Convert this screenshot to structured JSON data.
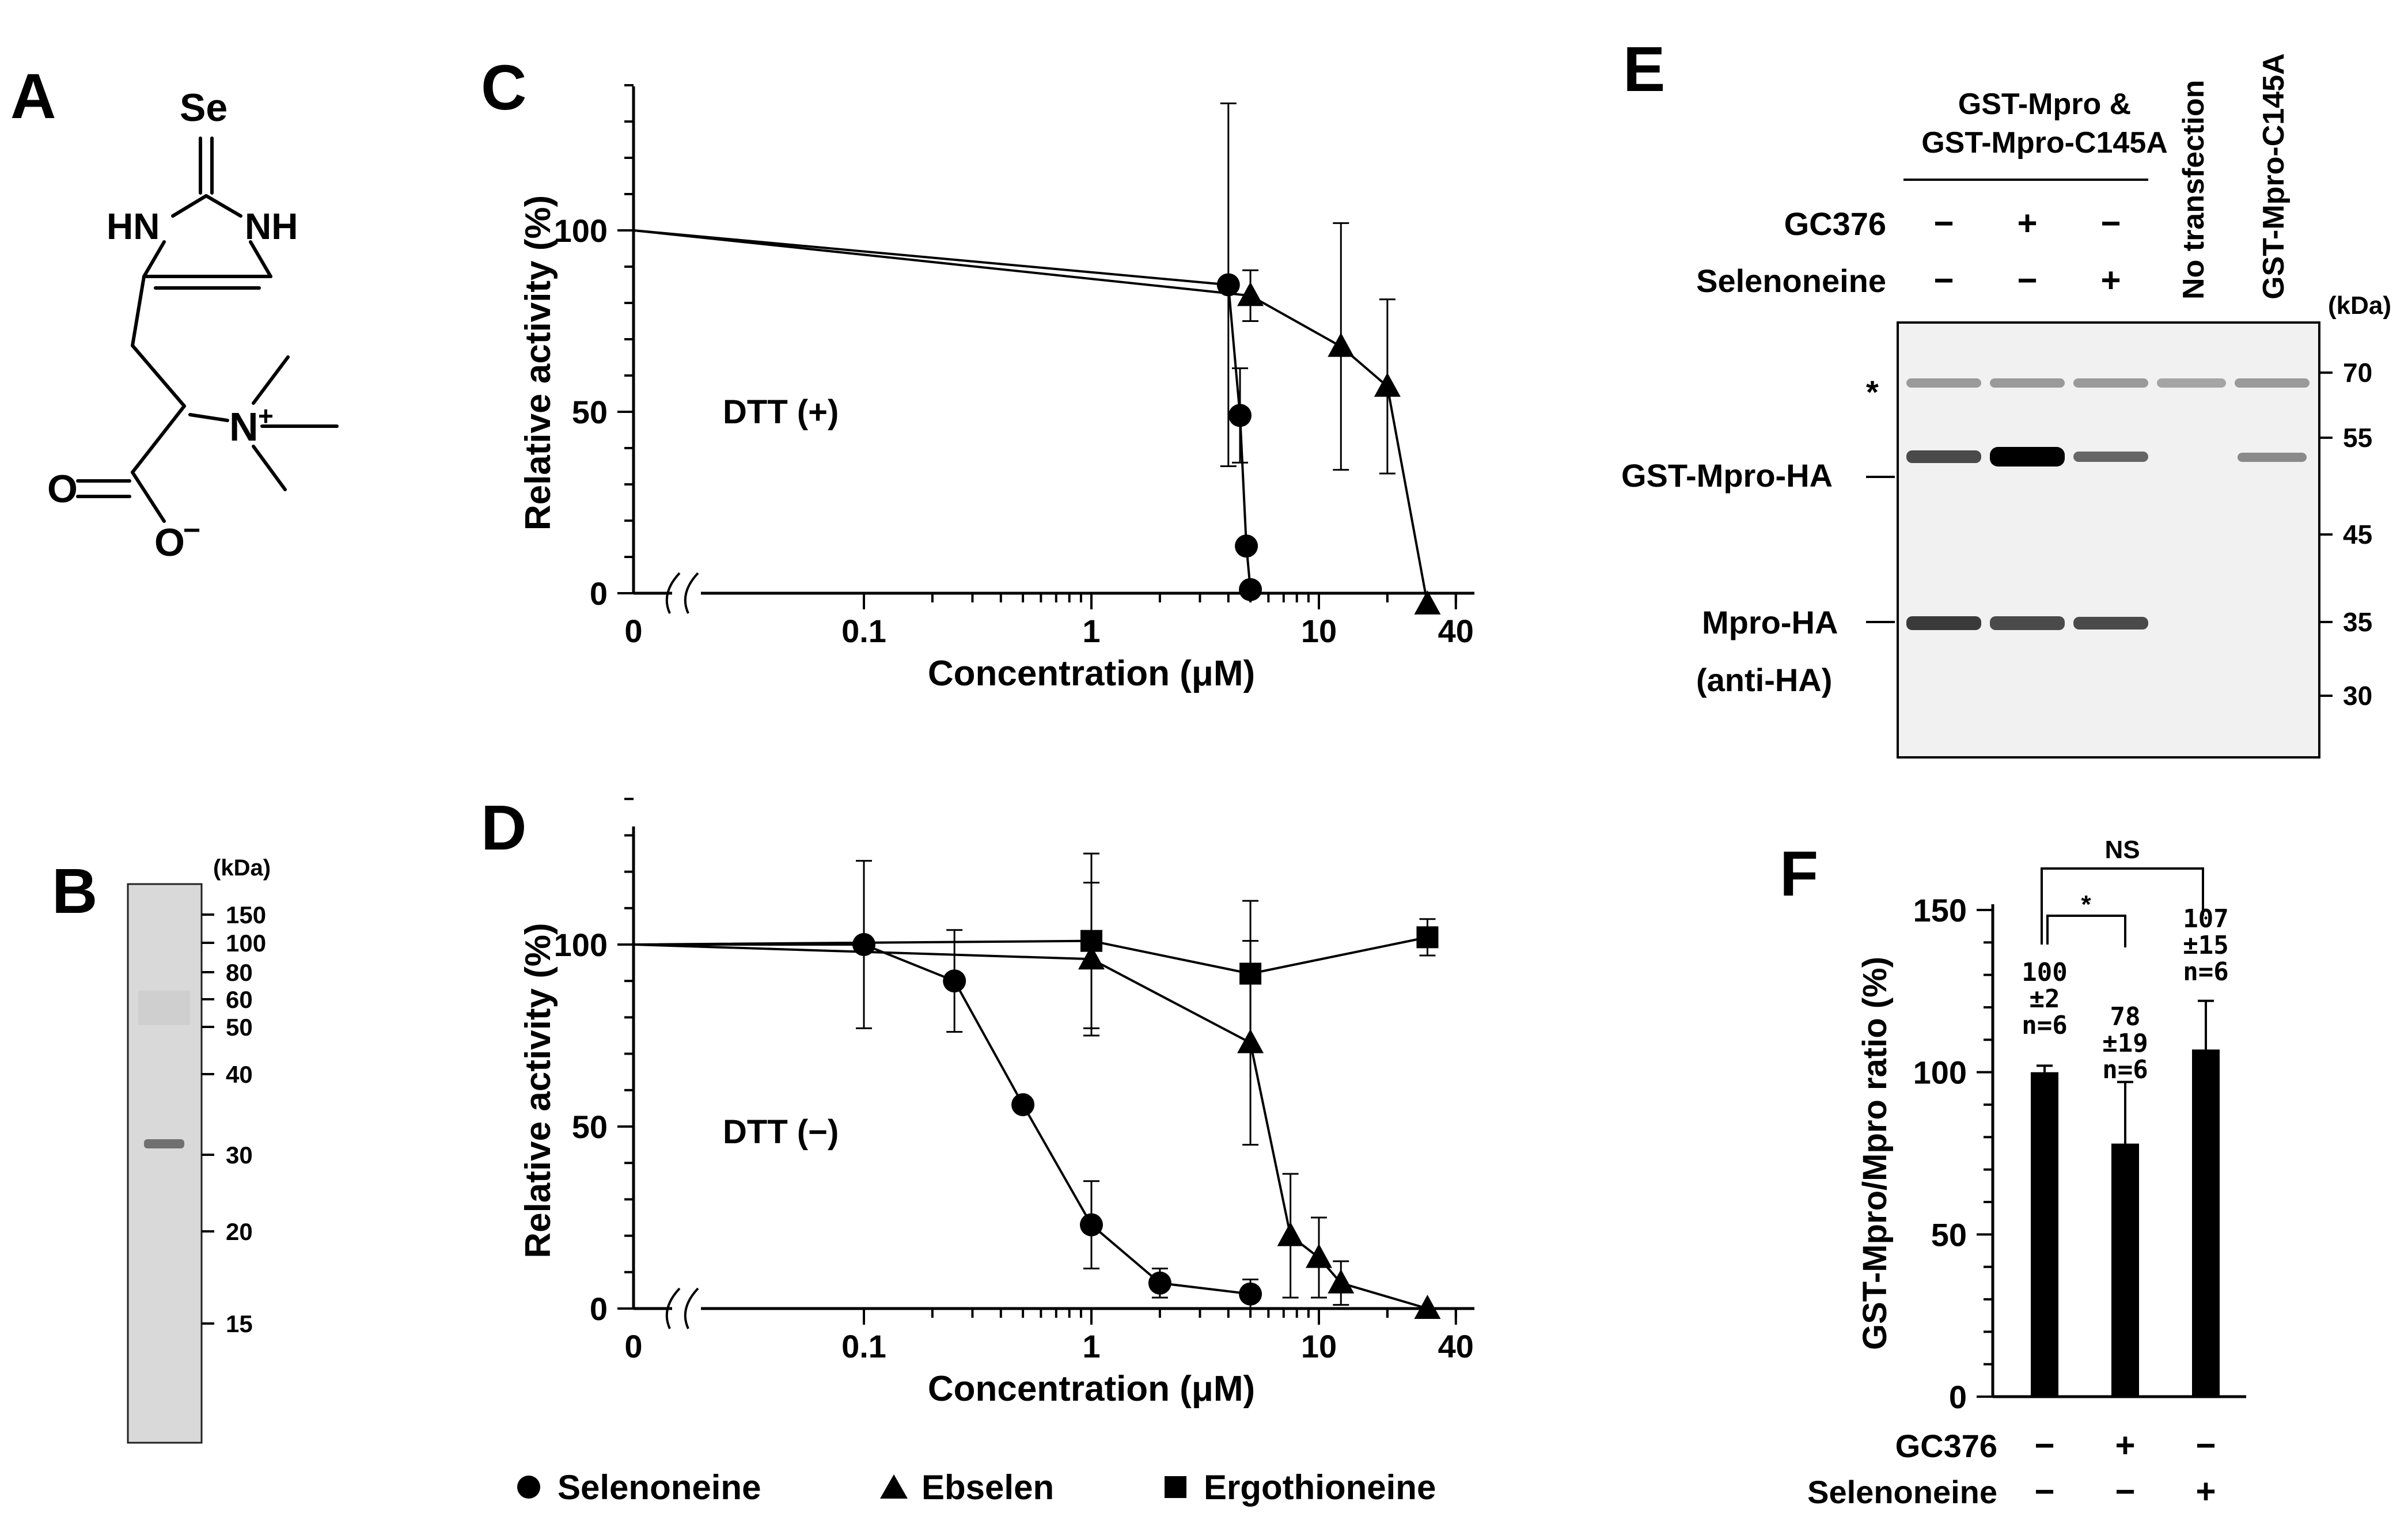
{
  "figure": {
    "panels": {
      "A": {
        "letter": "A",
        "atoms": {
          "Se": "Se",
          "HN": "HN",
          "NH": "NH",
          "N": "N",
          "plus": "+",
          "O1": "O",
          "O2": "O",
          "minus": "−"
        }
      },
      "B": {
        "letter": "B",
        "unit": "(kDa)",
        "markers": [
          "150",
          "100",
          "80",
          "60",
          "50",
          "40",
          "30",
          "20",
          "15"
        ]
      },
      "C": {
        "letter": "C",
        "condition": "DTT (+)"
      },
      "D": {
        "letter": "D",
        "condition": "DTT (−)"
      },
      "E": {
        "letter": "E",
        "group_header_line1": "GST-Mpro &",
        "group_header_line2": "GST-Mpro-C145A",
        "row_gc376": "GC376",
        "row_selenoneine": "Selenoneine",
        "gc376_signs": [
          "−",
          "+",
          "−"
        ],
        "selenoneine_signs": [
          "−",
          "−",
          "+"
        ],
        "lane_no_transfection": "No transfection",
        "lane_c145a": "GST-Mpro-C145A",
        "unit": "(kDa)",
        "markers": [
          "70",
          "55",
          "45",
          "35",
          "30"
        ],
        "asterisk": "*",
        "band_gst_mpro_ha": "GST-Mpro-HA",
        "band_mpro_ha": "Mpro-HA",
        "antibody": "(anti-HA)"
      },
      "F": {
        "letter": "F",
        "sig_ns": "NS",
        "sig_star": "*",
        "row_gc376": "GC376",
        "row_selenoneine": "Selenoneine",
        "gc376_signs": [
          "−",
          "+",
          "−"
        ],
        "selenoneine_signs": [
          "−",
          "−",
          "+"
        ],
        "bar_labels": [
          {
            "mean": "100",
            "sd": "±2",
            "n": "n=6"
          },
          {
            "mean": "78",
            "sd": "±19",
            "n": "n=6"
          },
          {
            "mean": "107",
            "sd": "±15",
            "n": "n=6"
          }
        ]
      }
    },
    "legend": {
      "selenoneine": "Selenoneine",
      "ebselen": "Ebselen",
      "ergothioneine": "Ergothioneine"
    }
  },
  "chart_data": [
    {
      "panel": "C",
      "type": "line",
      "title": "DTT (+)",
      "xlabel": "Concentration (μM)",
      "ylabel": "Relative activity (%)",
      "xscale": "log with axis break, 0 at origin",
      "xticks": [
        "0",
        "0.1",
        "1",
        "10",
        "40"
      ],
      "yticks": [
        "0",
        "50",
        "100"
      ],
      "ylim": [
        0,
        140
      ],
      "series": [
        {
          "name": "Selenoneine",
          "marker": "circle",
          "x": [
            0,
            4,
            4.5,
            4.8,
            5
          ],
          "y": [
            100,
            85,
            49,
            13,
            1
          ],
          "err": [
            0,
            50,
            13,
            0,
            0
          ]
        },
        {
          "name": "Ebselen",
          "marker": "triangle",
          "x": [
            0,
            5,
            12.5,
            20,
            30
          ],
          "y": [
            100,
            82,
            68,
            57,
            -3
          ],
          "err": [
            0,
            7,
            34,
            24,
            0
          ]
        }
      ]
    },
    {
      "panel": "D",
      "type": "line",
      "title": "DTT (−)",
      "xlabel": "Concentration (μM)",
      "ylabel": "Relative activity (%)",
      "xscale": "log with axis break, 0 at origin",
      "xticks": [
        "0",
        "0.1",
        "1",
        "10",
        "40"
      ],
      "yticks": [
        "0",
        "50",
        "100"
      ],
      "ylim": [
        0,
        140
      ],
      "series": [
        {
          "name": "Selenoneine",
          "marker": "circle",
          "x": [
            0,
            0.1,
            0.25,
            0.5,
            1,
            2,
            5
          ],
          "y": [
            100,
            100,
            90,
            56,
            23,
            7,
            4
          ],
          "err": [
            0,
            23,
            14,
            0,
            12,
            4,
            4
          ]
        },
        {
          "name": "Ebselen",
          "marker": "triangle",
          "x": [
            0,
            1,
            5,
            7.5,
            10,
            12.5,
            30
          ],
          "y": [
            100,
            96,
            73,
            20,
            14,
            7,
            0
          ],
          "err": [
            0,
            21,
            28,
            17,
            11,
            6,
            0
          ]
        },
        {
          "name": "Ergothioneine",
          "marker": "square",
          "x": [
            0,
            1,
            5,
            30
          ],
          "y": [
            100,
            101,
            92,
            102
          ],
          "err": [
            0,
            24,
            20,
            5
          ]
        }
      ]
    },
    {
      "panel": "F",
      "type": "bar",
      "xlabel": "",
      "ylabel": "GST-Mpro/Mpro ratio (%)",
      "yticks": [
        "0",
        "50",
        "100",
        "150"
      ],
      "ylim": [
        0,
        150
      ],
      "categories": [
        "GC376 − / Selenoneine −",
        "GC376 + / Selenoneine −",
        "GC376 − / Selenoneine +"
      ],
      "values": [
        100,
        78,
        107
      ],
      "errors": [
        2,
        19,
        15
      ]
    }
  ]
}
